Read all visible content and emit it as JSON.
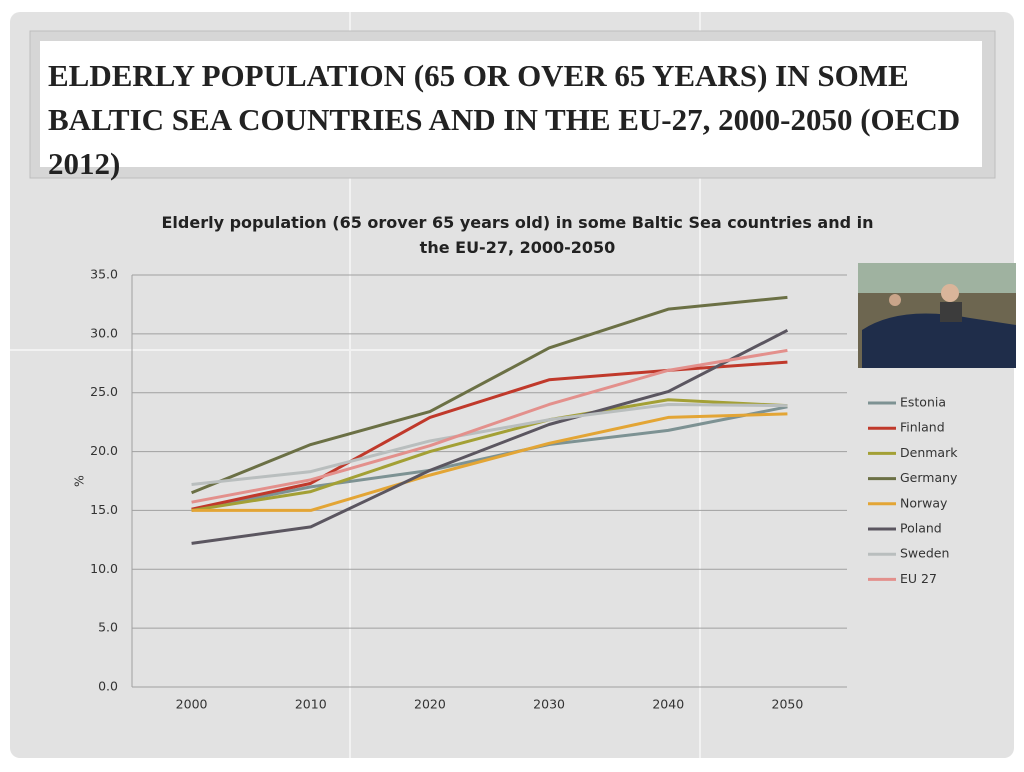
{
  "header": {
    "title": "ELDERLY POPULATION (65 OR OVER 65 YEARS) IN SOME BALTIC SEA COUNTRIES AND IN THE EU-27, 2000-2050 (OECD 2012)"
  },
  "chart_data": {
    "type": "line",
    "title": "Elderly population (65 orover 65 years old) in some Baltic Sea countries and in the EU-27, 2000-2050",
    "y_label": "%",
    "categories": [
      "2000",
      "2010",
      "2020",
      "2030",
      "2040",
      "2050"
    ],
    "ylim": [
      0,
      35
    ],
    "yticks": [
      {
        "value": 0,
        "label": "0.0"
      },
      {
        "value": 5,
        "label": "5.0"
      },
      {
        "value": 10,
        "label": "10.0"
      },
      {
        "value": 15,
        "label": "15.0"
      },
      {
        "value": 20,
        "label": "20.0"
      },
      {
        "value": 25,
        "label": "25.0"
      },
      {
        "value": 30,
        "label": "30.0"
      },
      {
        "value": 35,
        "label": "35.0"
      }
    ],
    "grid": true,
    "legend": "right",
    "series": [
      {
        "name": "Estonia",
        "color": "#7d9293",
        "values": [
          15.0,
          17.0,
          18.4,
          20.6,
          21.8,
          23.8
        ]
      },
      {
        "name": "Finland",
        "color": "#c0392b",
        "values": [
          15.1,
          17.3,
          22.9,
          26.1,
          26.9,
          27.6
        ]
      },
      {
        "name": "Denmark",
        "color": "#a3a035",
        "values": [
          15.0,
          16.6,
          20.0,
          22.7,
          24.4,
          23.9
        ]
      },
      {
        "name": "Germany",
        "color": "#6b7045",
        "values": [
          16.5,
          20.6,
          23.4,
          28.8,
          32.1,
          33.1
        ]
      },
      {
        "name": "Norway",
        "color": "#e3a535",
        "values": [
          15.0,
          15.0,
          18.0,
          20.7,
          22.9,
          23.2
        ]
      },
      {
        "name": "Poland",
        "color": "#5b5660",
        "values": [
          12.2,
          13.6,
          18.4,
          22.3,
          25.1,
          30.3
        ]
      },
      {
        "name": "Sweden",
        "color": "#b9bebe",
        "values": [
          17.2,
          18.3,
          20.9,
          22.7,
          24.0,
          23.9
        ]
      },
      {
        "name": "EU 27",
        "color": "#e3908c",
        "values": [
          15.7,
          17.6,
          20.5,
          24.0,
          26.9,
          28.6
        ]
      }
    ]
  }
}
